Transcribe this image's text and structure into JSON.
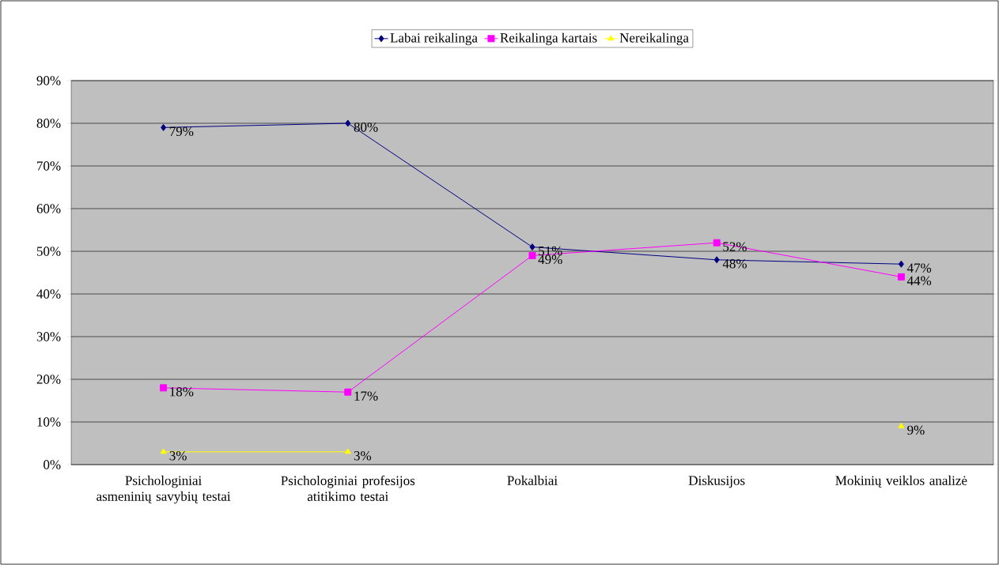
{
  "chart_data": {
    "type": "line",
    "categories": [
      "Psichologiniai asmeninių savybių testai",
      "Psichologiniai profesijos atitikimo testai",
      "Pokalbiai",
      "Diskusijos",
      "Mokinių veiklos analizė"
    ],
    "series": [
      {
        "name": "Labai reikalinga",
        "color": "#000080",
        "marker": "diamond",
        "values": [
          79,
          80,
          51,
          48,
          47
        ],
        "value_labels": [
          "79%",
          "80%",
          "51%",
          "48%",
          "47%"
        ]
      },
      {
        "name": "Reikalinga kartais",
        "color": "#ff00ff",
        "marker": "square",
        "values": [
          18,
          17,
          49,
          52,
          44
        ],
        "value_labels": [
          "18%",
          "17%",
          "49%",
          "52%",
          "44%"
        ]
      },
      {
        "name": "Nereikalinga",
        "color": "#ffff00",
        "marker": "triangle",
        "values": [
          3,
          3,
          null,
          null,
          9
        ],
        "value_labels": [
          "3%",
          "3%",
          null,
          null,
          "9%"
        ]
      }
    ],
    "ylim": [
      0,
      90
    ],
    "yticks": [
      {
        "value": 0,
        "label": "0%"
      },
      {
        "value": 10,
        "label": "10%"
      },
      {
        "value": 20,
        "label": "20%"
      },
      {
        "value": 30,
        "label": "30%"
      },
      {
        "value": 40,
        "label": "40%"
      },
      {
        "value": 50,
        "label": "50%"
      },
      {
        "value": 60,
        "label": "60%"
      },
      {
        "value": 70,
        "label": "70%"
      },
      {
        "value": 80,
        "label": "80%"
      },
      {
        "value": 90,
        "label": "90%"
      }
    ],
    "grid": "y",
    "legend": "top"
  }
}
